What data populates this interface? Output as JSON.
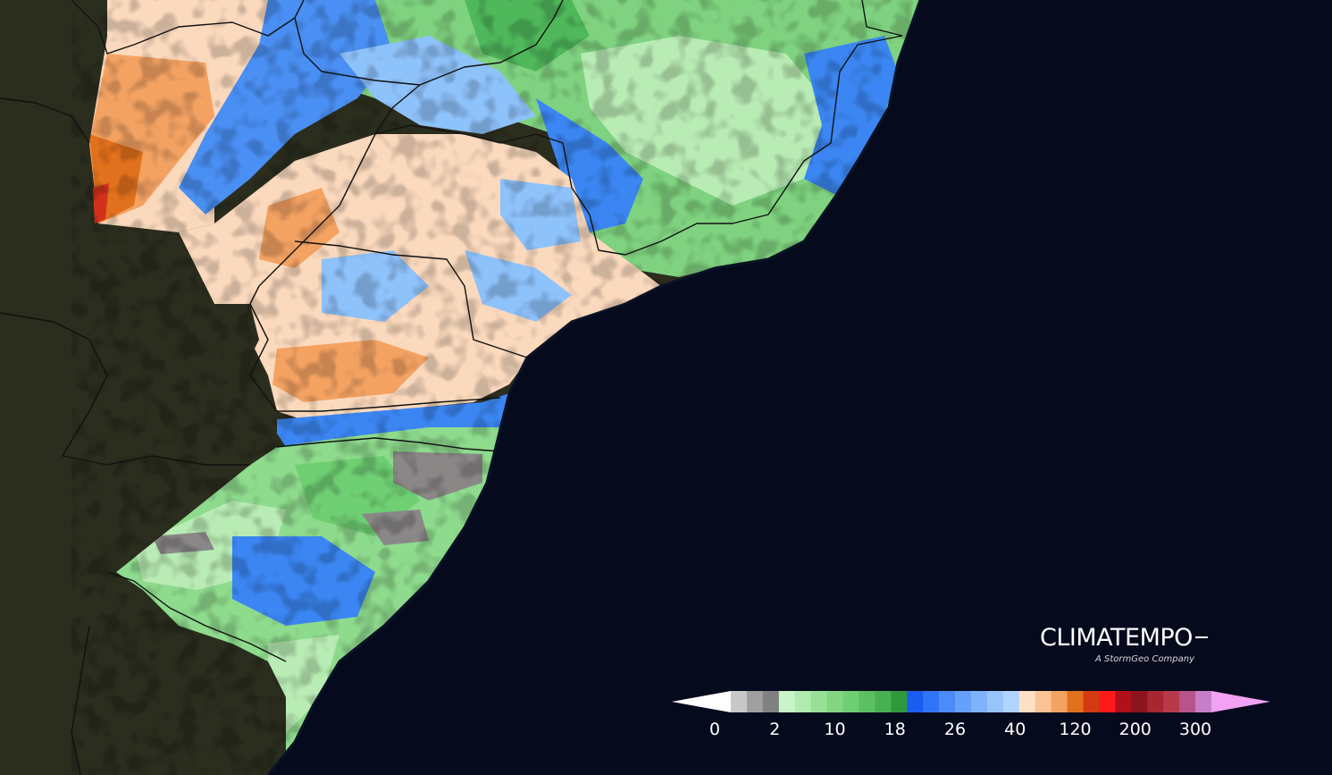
{
  "brand": {
    "name": "CLIMATEMPO",
    "subtitle": "A StormGeo Company"
  },
  "colors": {
    "ocean": "#050a1c",
    "land": "#2b2d1e",
    "border": "#111111",
    "no_rain": "#8a8787",
    "light_green": "#b9ecb4",
    "green": "#6fcf73",
    "dark_green": "#33a148",
    "blue": "#3b86f2",
    "light_blue": "#8ec2fb",
    "peach": "#fbd9bd",
    "orange": "#f4a262",
    "dark_orange": "#e2711d",
    "red": "#d2311c"
  },
  "legend": {
    "colors": [
      "#ffffff",
      "#c8c8c8",
      "#a0a0a0",
      "#808080",
      "#c8f5c8",
      "#b0ebb0",
      "#98e098",
      "#82d682",
      "#6fcf73",
      "#5cc062",
      "#47b152",
      "#2f9a3c",
      "#1a5cf0",
      "#2f75f5",
      "#4c8cf8",
      "#66a0fa",
      "#7eb2fb",
      "#98c4fc",
      "#b0d4fd",
      "#fde0c4",
      "#fbc394",
      "#f4a262",
      "#e2711d",
      "#d33b12",
      "#ff1a1a",
      "#b0101a",
      "#8c141e",
      "#a8262f",
      "#b63a4a",
      "#b8548c",
      "#c77ec8",
      "#f2a2f2"
    ],
    "ticks": [
      "0",
      "2",
      "10",
      "18",
      "26",
      "40",
      "120",
      "200",
      "300"
    ]
  }
}
